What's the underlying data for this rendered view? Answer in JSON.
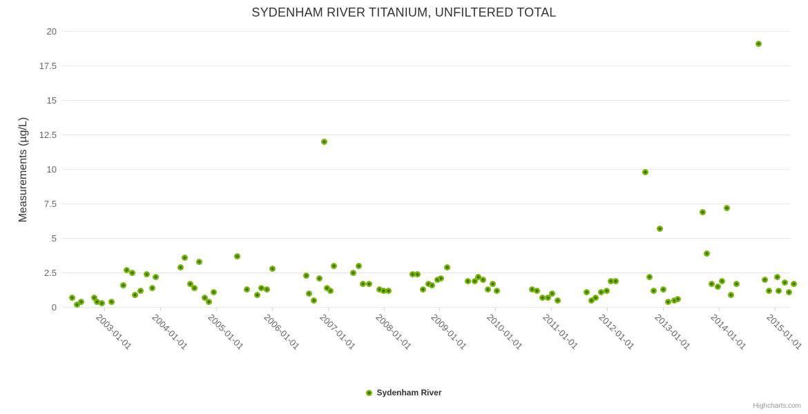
{
  "credit": "Highcharts.com",
  "chart_data": {
    "type": "scatter",
    "title": "SYDENHAM RIVER TITANIUM, UNFILTERED TOTAL",
    "xlabel": "",
    "ylabel": "Measurements (µg/L)",
    "ylim": [
      0,
      20
    ],
    "xlim_decimal_years": [
      2002.24,
      2015.29
    ],
    "grid": "horizontal-only",
    "legend_position": "bottom-center",
    "y_ticks": [
      {
        "v": 0,
        "label": "0"
      },
      {
        "v": 2.5,
        "label": "2.5"
      },
      {
        "v": 5,
        "label": "5"
      },
      {
        "v": 7.5,
        "label": "7.5"
      },
      {
        "v": 10,
        "label": "10"
      },
      {
        "v": 12.5,
        "label": "12.5"
      },
      {
        "v": 15,
        "label": "15"
      },
      {
        "v": 17.5,
        "label": "17.5"
      },
      {
        "v": 20,
        "label": "20"
      }
    ],
    "x_ticks": [
      {
        "year": 2003,
        "label": "2003-01-01"
      },
      {
        "year": 2004,
        "label": "2004-01-01"
      },
      {
        "year": 2005,
        "label": "2005-01-01"
      },
      {
        "year": 2006,
        "label": "2006-01-01"
      },
      {
        "year": 2007,
        "label": "2007-01-01"
      },
      {
        "year": 2008,
        "label": "2008-01-01"
      },
      {
        "year": 2009,
        "label": "2009-01-01"
      },
      {
        "year": 2010,
        "label": "2010-01-01"
      },
      {
        "year": 2011,
        "label": "2011-01-01"
      },
      {
        "year": 2012,
        "label": "2012-01-01"
      },
      {
        "year": 2013,
        "label": "2013-01-01"
      },
      {
        "year": 2014,
        "label": "2014-01-01"
      },
      {
        "year": 2015,
        "label": "2015-01-01"
      }
    ],
    "series": [
      {
        "name": "Sydenham River",
        "marker_color": "#78b606",
        "marker_center_color": "#3f6b00",
        "points": [
          [
            2002.42,
            0.7
          ],
          [
            2002.5,
            0.2
          ],
          [
            2002.58,
            0.4
          ],
          [
            2002.81,
            0.7
          ],
          [
            2002.86,
            0.4
          ],
          [
            2002.95,
            0.3
          ],
          [
            2003.12,
            0.4
          ],
          [
            2003.34,
            1.6
          ],
          [
            2003.4,
            2.7
          ],
          [
            2003.49,
            2.5
          ],
          [
            2003.55,
            0.9
          ],
          [
            2003.64,
            1.2
          ],
          [
            2003.75,
            2.4
          ],
          [
            2003.85,
            1.4
          ],
          [
            2003.92,
            2.2
          ],
          [
            2004.36,
            2.9
          ],
          [
            2004.44,
            3.6
          ],
          [
            2004.53,
            1.7
          ],
          [
            2004.61,
            1.4
          ],
          [
            2004.69,
            3.3
          ],
          [
            2004.8,
            0.7
          ],
          [
            2004.87,
            0.4
          ],
          [
            2004.96,
            1.1
          ],
          [
            2005.37,
            3.7
          ],
          [
            2005.55,
            1.3
          ],
          [
            2005.74,
            0.9
          ],
          [
            2005.81,
            1.4
          ],
          [
            2005.91,
            1.3
          ],
          [
            2006.01,
            2.8
          ],
          [
            2006.61,
            2.3
          ],
          [
            2006.66,
            1.0
          ],
          [
            2006.75,
            0.5
          ],
          [
            2006.85,
            2.1
          ],
          [
            2006.93,
            12.0
          ],
          [
            2006.98,
            1.4
          ],
          [
            2007.05,
            1.2
          ],
          [
            2007.11,
            3.0
          ],
          [
            2007.45,
            2.5
          ],
          [
            2007.55,
            3.0
          ],
          [
            2007.63,
            1.7
          ],
          [
            2007.74,
            1.7
          ],
          [
            2007.92,
            1.3
          ],
          [
            2008.0,
            1.2
          ],
          [
            2008.08,
            1.2
          ],
          [
            2008.52,
            2.4
          ],
          [
            2008.6,
            2.4
          ],
          [
            2008.7,
            1.3
          ],
          [
            2008.8,
            1.7
          ],
          [
            2008.87,
            1.6
          ],
          [
            2008.96,
            2.0
          ],
          [
            2009.03,
            2.1
          ],
          [
            2009.13,
            2.9
          ],
          [
            2009.51,
            1.9
          ],
          [
            2009.63,
            1.9
          ],
          [
            2009.69,
            2.2
          ],
          [
            2009.78,
            2.0
          ],
          [
            2009.87,
            1.3
          ],
          [
            2009.95,
            1.7
          ],
          [
            2010.03,
            1.2
          ],
          [
            2010.66,
            1.3
          ],
          [
            2010.74,
            1.2
          ],
          [
            2010.84,
            0.7
          ],
          [
            2010.94,
            0.7
          ],
          [
            2011.02,
            1.0
          ],
          [
            2011.11,
            0.5
          ],
          [
            2011.63,
            1.1
          ],
          [
            2011.72,
            0.5
          ],
          [
            2011.79,
            0.7
          ],
          [
            2011.89,
            1.1
          ],
          [
            2011.99,
            1.2
          ],
          [
            2012.07,
            1.9
          ],
          [
            2012.15,
            1.9
          ],
          [
            2012.68,
            9.8
          ],
          [
            2012.76,
            2.2
          ],
          [
            2012.83,
            1.2
          ],
          [
            2012.94,
            5.7
          ],
          [
            2013.01,
            1.3
          ],
          [
            2013.1,
            0.4
          ],
          [
            2013.2,
            0.5
          ],
          [
            2013.27,
            0.6
          ],
          [
            2013.71,
            6.9
          ],
          [
            2013.79,
            3.9
          ],
          [
            2013.87,
            1.7
          ],
          [
            2013.98,
            1.5
          ],
          [
            2014.06,
            1.9
          ],
          [
            2014.15,
            7.2
          ],
          [
            2014.22,
            0.9
          ],
          [
            2014.32,
            1.7
          ],
          [
            2014.72,
            19.1
          ],
          [
            2014.82,
            2.0
          ],
          [
            2014.9,
            1.2
          ],
          [
            2015.05,
            2.2
          ],
          [
            2015.07,
            1.2
          ],
          [
            2015.18,
            1.8
          ],
          [
            2015.26,
            1.1
          ],
          [
            2015.35,
            1.7
          ]
        ]
      }
    ]
  }
}
